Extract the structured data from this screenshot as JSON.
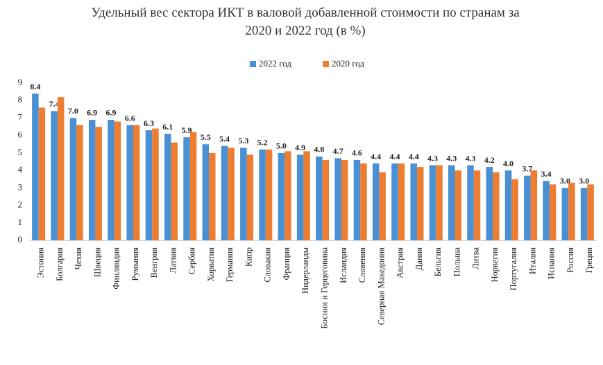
{
  "chart_data": {
    "type": "bar",
    "title": "Удельный вес сектора ИКТ в валовой добавленной стоимости по странам за 2020 и 2022 год (в %)",
    "categories": [
      "Эстония",
      "Болгария",
      "Чехия",
      "Швеция",
      "Финляндия",
      "Румыния",
      "Венгрия",
      "Латвия",
      "Сербия",
      "Хорватия",
      "Германия",
      "Кипр",
      "Словакия",
      "Франция",
      "Нидерланды",
      "Босния и Герцеговина",
      "Исландия",
      "Словения",
      "Северная Македония",
      "Австрия",
      "Дания",
      "Бельгия",
      "Польша",
      "Литва",
      "Норвегия",
      "Португалия",
      "Италия",
      "Испания",
      "Россия",
      "Греция"
    ],
    "series": [
      {
        "name": "2022 год",
        "color": "#4a90d4",
        "values": [
          8.4,
          7.4,
          7.0,
          6.9,
          6.9,
          6.6,
          6.3,
          6.1,
          5.9,
          5.5,
          5.4,
          5.3,
          5.2,
          5.0,
          4.9,
          4.8,
          4.7,
          4.6,
          4.4,
          4.4,
          4.4,
          4.3,
          4.3,
          4.3,
          4.2,
          4.0,
          3.7,
          3.4,
          3.0,
          3.0
        ],
        "value_labels": [
          "8.4",
          "7.4",
          "7.0",
          "6.9",
          "6.9",
          "6.6",
          "6.3",
          "6.1",
          "5.9",
          "5.5",
          "5.4",
          "5.3",
          "5.2",
          "5.0",
          "4.9",
          "4.8",
          "4.7",
          "4.6",
          "4.4",
          "4.4",
          "4.4",
          "4.3",
          "4.3",
          "4.3",
          "4.2",
          "4.0",
          "3.7",
          "3.4",
          "3.0",
          "3.0"
        ]
      },
      {
        "name": "2020 год",
        "color": "#ed7d31",
        "values": [
          7.6,
          8.2,
          6.6,
          6.5,
          6.8,
          6.6,
          6.4,
          5.6,
          6.2,
          5.0,
          5.3,
          4.9,
          5.2,
          5.1,
          5.1,
          4.6,
          4.6,
          4.4,
          3.9,
          4.4,
          4.2,
          4.3,
          4.0,
          4.0,
          3.9,
          3.5,
          4.0,
          3.2,
          3.3,
          3.2
        ]
      }
    ],
    "ylim": [
      0,
      9
    ],
    "yticks": [
      0,
      1,
      2,
      3,
      4,
      5,
      6,
      7,
      8,
      9
    ],
    "grid": false,
    "legend": "top"
  }
}
